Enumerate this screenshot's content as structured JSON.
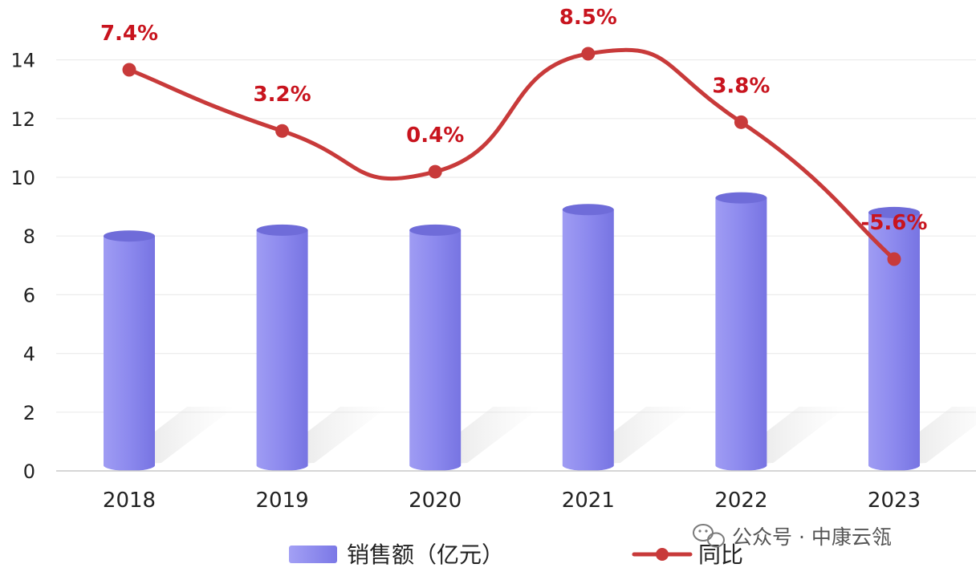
{
  "chart_data": {
    "type": "bar",
    "categories": [
      "2018",
      "2019",
      "2020",
      "2021",
      "2022",
      "2023"
    ],
    "series": [
      {
        "name": "销售额（亿元）",
        "type": "bar",
        "values": [
          8.0,
          8.2,
          8.2,
          8.9,
          9.3,
          8.8
        ],
        "color": "#8a87ec"
      },
      {
        "name": "同比",
        "type": "line",
        "axis": "secondary",
        "values": [
          7.4,
          3.2,
          0.4,
          8.5,
          3.8,
          -5.6
        ],
        "labels": [
          "7.4%",
          "3.2%",
          "0.4%",
          "8.5%",
          "3.8%",
          "-5.6%"
        ],
        "color": "#c83a3a"
      }
    ],
    "yticks": [
      "0",
      "2",
      "4",
      "6",
      "8",
      "10",
      "12",
      "14"
    ],
    "ylim": [
      0,
      15
    ],
    "y2lim": [
      -12,
      12
    ],
    "grid": true,
    "legend_position": "bottom"
  },
  "watermark": {
    "icon": "wechat-icon",
    "text": "公众号 · 中康云瓴"
  }
}
